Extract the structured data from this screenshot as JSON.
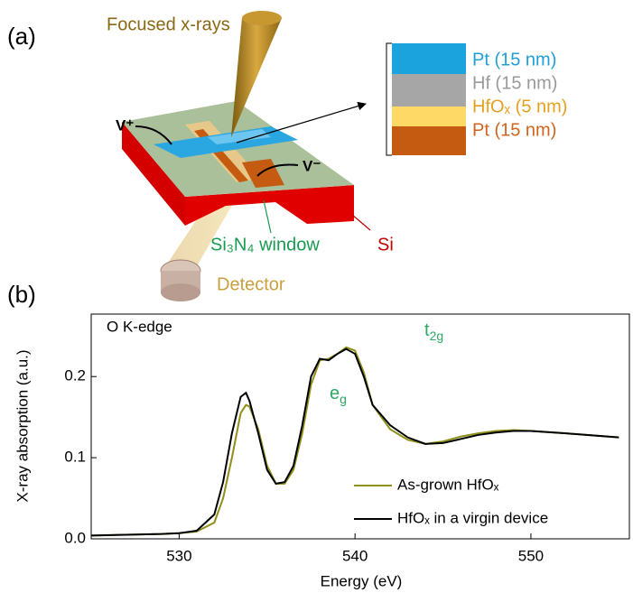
{
  "diagram": {
    "panel_label": "(a)",
    "beam_label": "Focused x-rays",
    "electrode_plus": "V⁺",
    "electrode_minus": "V⁻",
    "window_label": "Si₃N₄ window",
    "substrate_label": "Si",
    "detector_label": "Detector",
    "layers": [
      {
        "label": "Pt (15 nm)",
        "color": "#1aa3dc",
        "text_color": "#1e9fd8"
      },
      {
        "label": "Hf (15 nm)",
        "color": "#a6a6a6",
        "text_color": "#9a9a9a"
      },
      {
        "label": "HfOₓ (5 nm)",
        "color": "#ffd966",
        "text_color": "#e6a020"
      },
      {
        "label": "Pt (15 nm)",
        "color": "#c55a11",
        "text_color": "#d0641e"
      }
    ]
  },
  "chart_data": {
    "type": "line",
    "panel_label": "(b)",
    "note": "O K-edge",
    "peak_labels": [
      {
        "base": "e",
        "sub": "g"
      },
      {
        "base": "t",
        "sub": "2g"
      }
    ],
    "peak_label_color": "#2aa866",
    "x_label": "Energy (eV)",
    "y_label": "X-ray absorption (a.u.)",
    "xlim": [
      525,
      555.6
    ],
    "ylim": [
      0,
      0.277
    ],
    "xticks": [
      530,
      540,
      550
    ],
    "yticks": [
      {
        "value": 0,
        "label": "0.0"
      },
      0.1,
      0.2
    ],
    "legend": "lower right",
    "x": [
      525,
      527,
      529,
      530,
      531,
      532,
      532.5,
      533,
      533.5,
      533.8,
      534,
      534.5,
      535,
      535.5,
      536,
      536.5,
      537,
      537.5,
      538,
      538.5,
      539,
      539.5,
      540,
      540.5,
      541,
      542,
      543,
      544,
      545,
      546,
      547,
      548,
      549,
      550,
      552,
      555
    ],
    "series": [
      {
        "name": "As-grown HfOₓ",
        "color": "#8f8f1a",
        "values": [
          0.004,
          0.005,
          0.006,
          0.007,
          0.009,
          0.02,
          0.05,
          0.1,
          0.155,
          0.165,
          0.163,
          0.135,
          0.09,
          0.068,
          0.068,
          0.085,
          0.13,
          0.19,
          0.22,
          0.222,
          0.228,
          0.236,
          0.232,
          0.205,
          0.165,
          0.135,
          0.122,
          0.117,
          0.12,
          0.126,
          0.13,
          0.133,
          0.134,
          0.133,
          0.13,
          0.125
        ]
      },
      {
        "name": "HfOₓ in a virgin device",
        "color": "#000000",
        "values": [
          0.004,
          0.005,
          0.006,
          0.007,
          0.01,
          0.03,
          0.07,
          0.13,
          0.175,
          0.18,
          0.17,
          0.13,
          0.085,
          0.068,
          0.07,
          0.09,
          0.14,
          0.2,
          0.222,
          0.22,
          0.228,
          0.234,
          0.228,
          0.2,
          0.165,
          0.14,
          0.125,
          0.117,
          0.118,
          0.123,
          0.128,
          0.131,
          0.133,
          0.133,
          0.13,
          0.125
        ]
      }
    ]
  }
}
